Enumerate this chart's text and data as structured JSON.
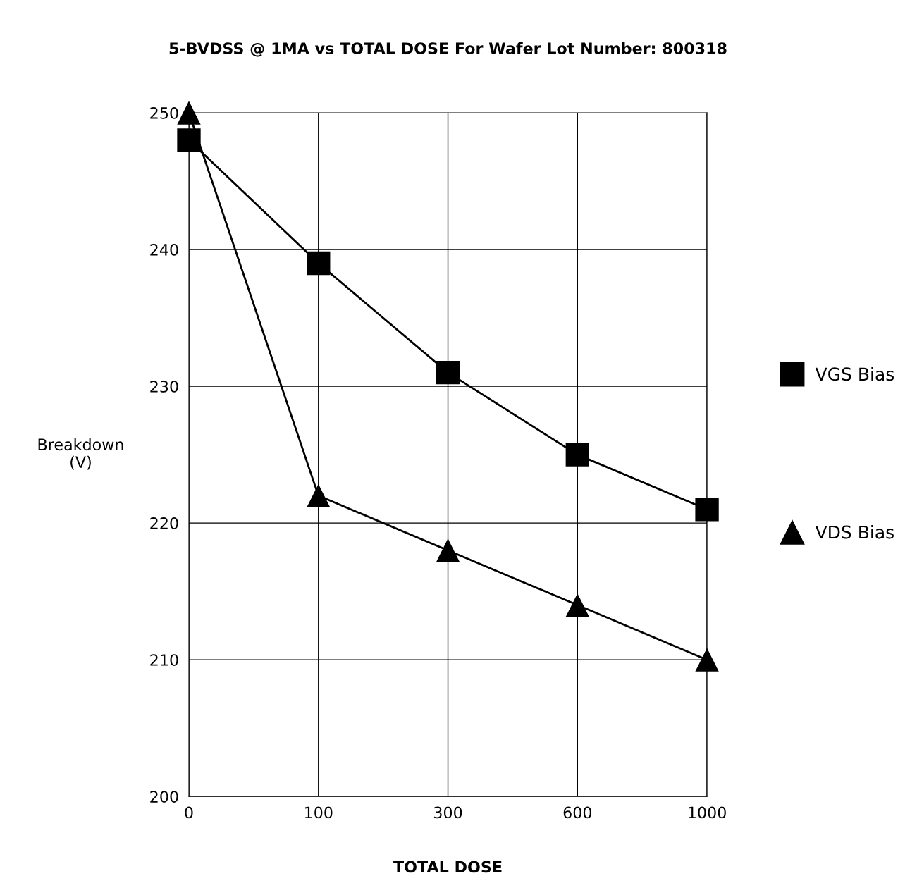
{
  "chart_data": {
    "type": "line",
    "title": "5-BVDSS @ 1MA vs TOTAL DOSE For Wafer Lot Number: 800318",
    "xlabel": "TOTAL DOSE",
    "ylabel": "Breakdown\n(V)",
    "categories": [
      "0",
      "100",
      "300",
      "600",
      "1000"
    ],
    "series": [
      {
        "name": "VGS Bias",
        "color": "#000000",
        "marker": "square",
        "values": [
          248,
          239,
          231,
          225,
          221
        ]
      },
      {
        "name": "VDS Bias",
        "color": "#000000",
        "marker": "triangle",
        "values": [
          250,
          222,
          218,
          214,
          210
        ]
      }
    ],
    "ylim": [
      200,
      250
    ],
    "yticks": [
      200,
      210,
      220,
      230,
      240,
      250
    ],
    "grid": true,
    "legend": "right",
    "line_style": "solid"
  }
}
